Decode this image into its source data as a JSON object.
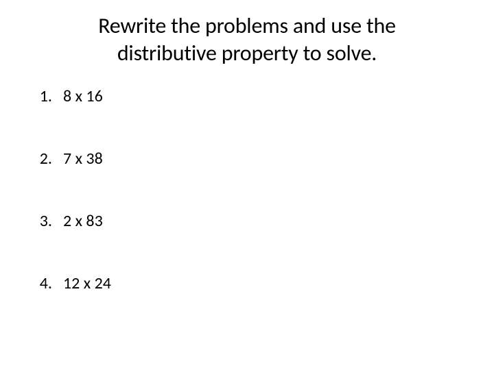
{
  "title_line1": "Rewrite the problems and use the",
  "title_line2": "distributive property to solve.",
  "problems": [
    {
      "number": "1.",
      "expression": "8 x 16"
    },
    {
      "number": "2.",
      "expression": "7 x 38"
    },
    {
      "number": "3.",
      "expression": "2 x 83"
    },
    {
      "number": "4.",
      "expression": "12 x 24"
    }
  ],
  "colors": {
    "background": "#ffffff",
    "text": "#000000"
  },
  "typography": {
    "title_fontsize": 32,
    "body_fontsize": 24,
    "font_family": "Calibri"
  }
}
